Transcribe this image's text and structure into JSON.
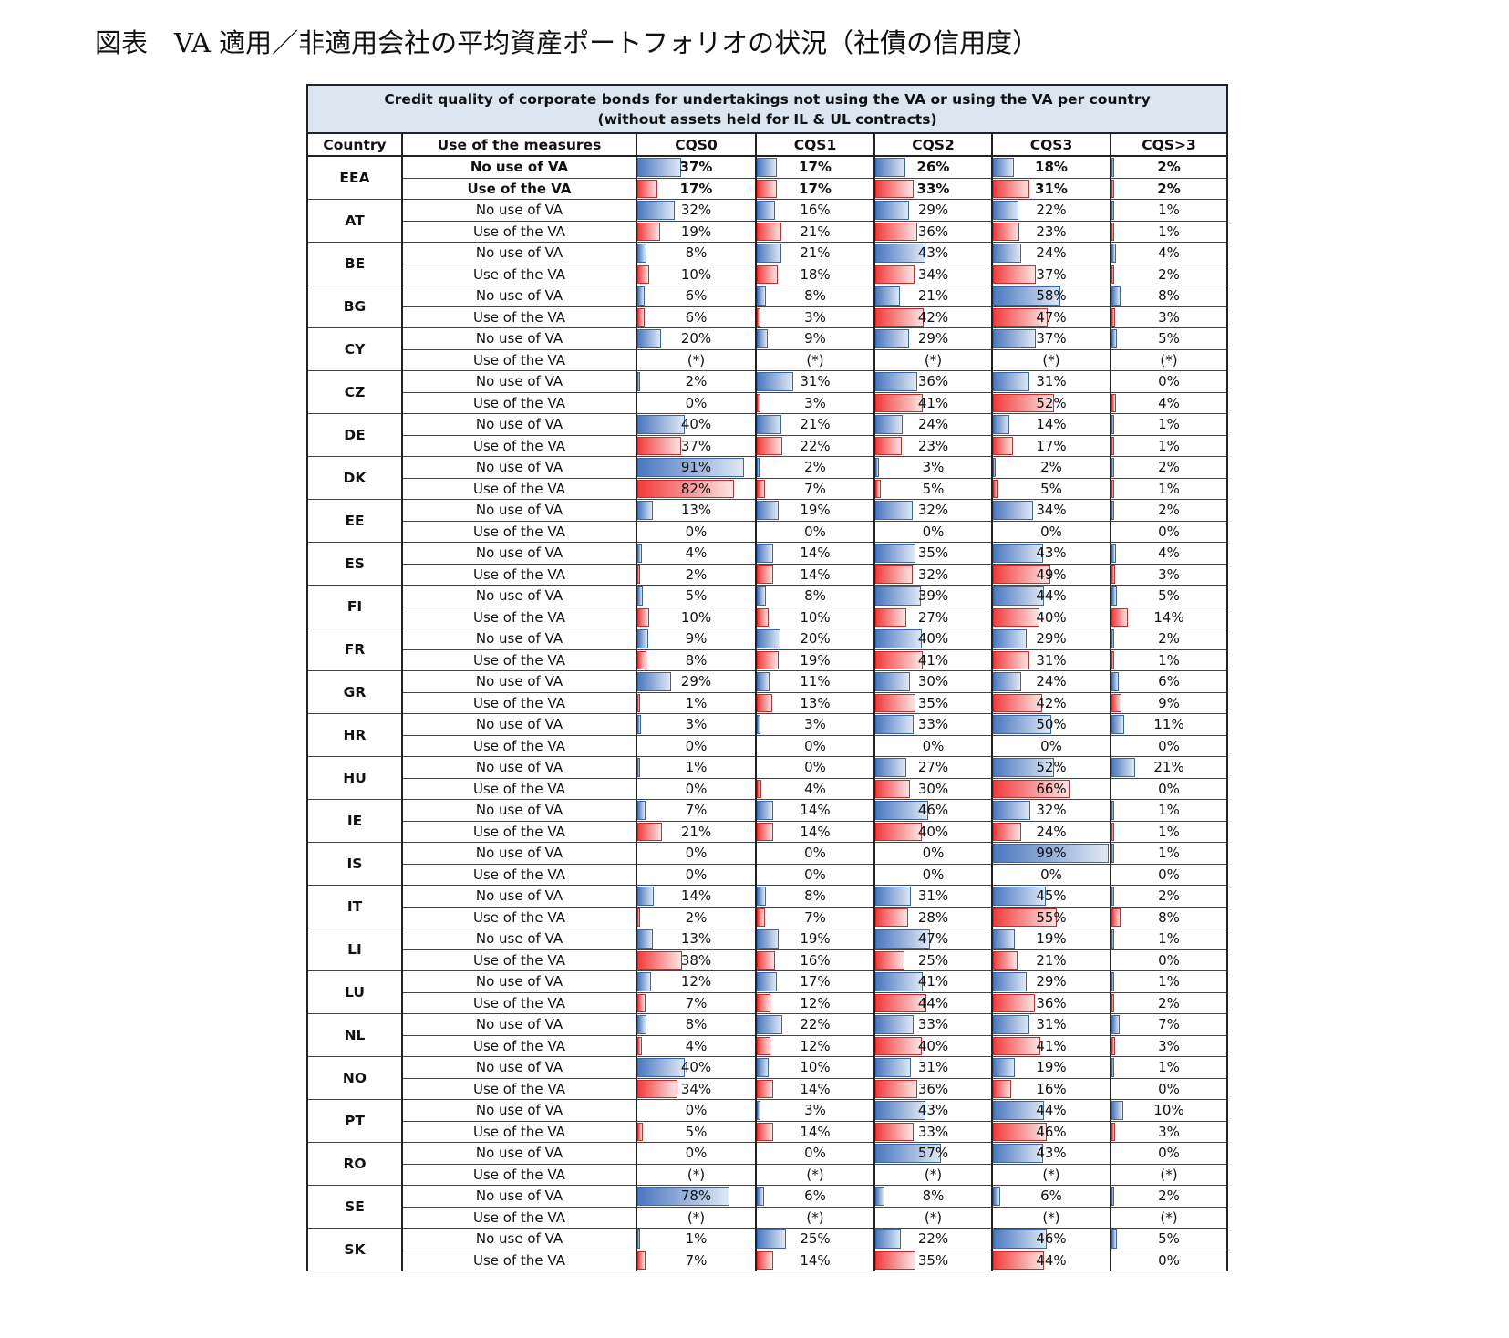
{
  "figure_title": "図表　VA 適用／非適用会社の平均資産ポートフォリオの状況（社債の信用度）",
  "colors": {
    "no_va_bar": "#4a78c0",
    "va_bar": "#f23c3c",
    "caption_bg": "#dce6f1"
  },
  "chart_data": {
    "type": "table",
    "title_line1": "Credit quality of corporate bonds for undertakings not using the VA or using the VA per country",
    "title_line2": "(without assets held for IL & UL contracts)",
    "columns": [
      "Country",
      "Use of the measures",
      "CQS0",
      "CQS1",
      "CQS2",
      "CQS3",
      "CQS>3"
    ],
    "measure_labels": {
      "no_va": "No use of VA",
      "va": "Use of the VA"
    },
    "rows": [
      {
        "country": "EEA",
        "no_va": [
          "37%",
          "17%",
          "26%",
          "18%",
          "2%"
        ],
        "va": [
          "17%",
          "17%",
          "33%",
          "31%",
          "2%"
        ]
      },
      {
        "country": "AT",
        "no_va": [
          "32%",
          "16%",
          "29%",
          "22%",
          "1%"
        ],
        "va": [
          "19%",
          "21%",
          "36%",
          "23%",
          "1%"
        ]
      },
      {
        "country": "BE",
        "no_va": [
          "8%",
          "21%",
          "43%",
          "24%",
          "4%"
        ],
        "va": [
          "10%",
          "18%",
          "34%",
          "37%",
          "2%"
        ]
      },
      {
        "country": "BG",
        "no_va": [
          "6%",
          "8%",
          "21%",
          "58%",
          "8%"
        ],
        "va": [
          "6%",
          "3%",
          "42%",
          "47%",
          "3%"
        ]
      },
      {
        "country": "CY",
        "no_va": [
          "20%",
          "9%",
          "29%",
          "37%",
          "5%"
        ],
        "va": [
          "(*)",
          "(*)",
          "(*)",
          "(*)",
          "(*)"
        ]
      },
      {
        "country": "CZ",
        "no_va": [
          "2%",
          "31%",
          "36%",
          "31%",
          "0%"
        ],
        "va": [
          "0%",
          "3%",
          "41%",
          "52%",
          "4%"
        ]
      },
      {
        "country": "DE",
        "no_va": [
          "40%",
          "21%",
          "24%",
          "14%",
          "1%"
        ],
        "va": [
          "37%",
          "22%",
          "23%",
          "17%",
          "1%"
        ]
      },
      {
        "country": "DK",
        "no_va": [
          "91%",
          "2%",
          "3%",
          "2%",
          "2%"
        ],
        "va": [
          "82%",
          "7%",
          "5%",
          "5%",
          "1%"
        ]
      },
      {
        "country": "EE",
        "no_va": [
          "13%",
          "19%",
          "32%",
          "34%",
          "2%"
        ],
        "va": [
          "0%",
          "0%",
          "0%",
          "0%",
          "0%"
        ]
      },
      {
        "country": "ES",
        "no_va": [
          "4%",
          "14%",
          "35%",
          "43%",
          "4%"
        ],
        "va": [
          "2%",
          "14%",
          "32%",
          "49%",
          "3%"
        ]
      },
      {
        "country": "FI",
        "no_va": [
          "5%",
          "8%",
          "39%",
          "44%",
          "5%"
        ],
        "va": [
          "10%",
          "10%",
          "27%",
          "40%",
          "14%"
        ]
      },
      {
        "country": "FR",
        "no_va": [
          "9%",
          "20%",
          "40%",
          "29%",
          "2%"
        ],
        "va": [
          "8%",
          "19%",
          "41%",
          "31%",
          "1%"
        ]
      },
      {
        "country": "GR",
        "no_va": [
          "29%",
          "11%",
          "30%",
          "24%",
          "6%"
        ],
        "va": [
          "1%",
          "13%",
          "35%",
          "42%",
          "9%"
        ]
      },
      {
        "country": "HR",
        "no_va": [
          "3%",
          "3%",
          "33%",
          "50%",
          "11%"
        ],
        "va": [
          "0%",
          "0%",
          "0%",
          "0%",
          "0%"
        ]
      },
      {
        "country": "HU",
        "no_va": [
          "1%",
          "0%",
          "27%",
          "52%",
          "21%"
        ],
        "va": [
          "0%",
          "4%",
          "30%",
          "66%",
          "0%"
        ]
      },
      {
        "country": "IE",
        "no_va": [
          "7%",
          "14%",
          "46%",
          "32%",
          "1%"
        ],
        "va": [
          "21%",
          "14%",
          "40%",
          "24%",
          "1%"
        ]
      },
      {
        "country": "IS",
        "no_va": [
          "0%",
          "0%",
          "0%",
          "99%",
          "1%"
        ],
        "va": [
          "0%",
          "0%",
          "0%",
          "0%",
          "0%"
        ]
      },
      {
        "country": "IT",
        "no_va": [
          "14%",
          "8%",
          "31%",
          "45%",
          "2%"
        ],
        "va": [
          "2%",
          "7%",
          "28%",
          "55%",
          "8%"
        ]
      },
      {
        "country": "LI",
        "no_va": [
          "13%",
          "19%",
          "47%",
          "19%",
          "1%"
        ],
        "va": [
          "38%",
          "16%",
          "25%",
          "21%",
          "0%"
        ]
      },
      {
        "country": "LU",
        "no_va": [
          "12%",
          "17%",
          "41%",
          "29%",
          "1%"
        ],
        "va": [
          "7%",
          "12%",
          "44%",
          "36%",
          "2%"
        ]
      },
      {
        "country": "NL",
        "no_va": [
          "8%",
          "22%",
          "33%",
          "31%",
          "7%"
        ],
        "va": [
          "4%",
          "12%",
          "40%",
          "41%",
          "3%"
        ]
      },
      {
        "country": "NO",
        "no_va": [
          "40%",
          "10%",
          "31%",
          "19%",
          "1%"
        ],
        "va": [
          "34%",
          "14%",
          "36%",
          "16%",
          "0%"
        ]
      },
      {
        "country": "PT",
        "no_va": [
          "0%",
          "3%",
          "43%",
          "44%",
          "10%"
        ],
        "va": [
          "5%",
          "14%",
          "33%",
          "46%",
          "3%"
        ]
      },
      {
        "country": "RO",
        "no_va": [
          "0%",
          "0%",
          "57%",
          "43%",
          "0%"
        ],
        "va": [
          "(*)",
          "(*)",
          "(*)",
          "(*)",
          "(*)"
        ]
      },
      {
        "country": "SE",
        "no_va": [
          "78%",
          "6%",
          "8%",
          "6%",
          "2%"
        ],
        "va": [
          "(*)",
          "(*)",
          "(*)",
          "(*)",
          "(*)"
        ]
      },
      {
        "country": "SK",
        "no_va": [
          "1%",
          "25%",
          "22%",
          "46%",
          "5%"
        ],
        "va": [
          "7%",
          "14%",
          "35%",
          "44%",
          "0%"
        ]
      }
    ]
  }
}
